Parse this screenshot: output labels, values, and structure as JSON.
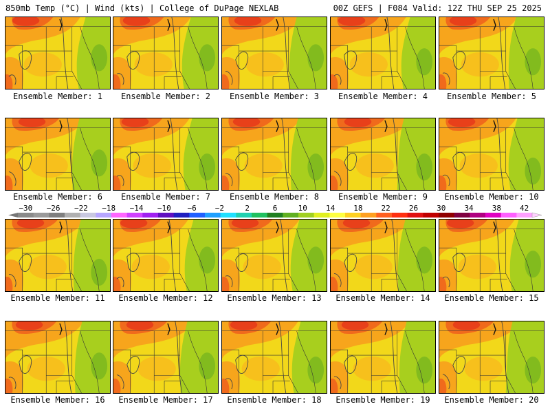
{
  "header": {
    "left": "850mb Temp (°C) | Wind (kts) | College of DuPage NEXLAB",
    "right": "00Z GEFS | F084 Valid: 12Z THU SEP 25 2025"
  },
  "members": [
    {
      "label": "Ensemble Member: 1"
    },
    {
      "label": "Ensemble Member: 2"
    },
    {
      "label": "Ensemble Member: 3"
    },
    {
      "label": "Ensemble Member: 4"
    },
    {
      "label": "Ensemble Member: 5"
    },
    {
      "label": "Ensemble Member: 6"
    },
    {
      "label": "Ensemble Member: 7"
    },
    {
      "label": "Ensemble Member: 8"
    },
    {
      "label": "Ensemble Member: 9"
    },
    {
      "label": "Ensemble Member: 10"
    },
    {
      "label": "Ensemble Member: 11"
    },
    {
      "label": "Ensemble Member: 12"
    },
    {
      "label": "Ensemble Member: 13"
    },
    {
      "label": "Ensemble Member: 14"
    },
    {
      "label": "Ensemble Member: 15"
    },
    {
      "label": "Ensemble Member: 16"
    },
    {
      "label": "Ensemble Member: 17"
    },
    {
      "label": "Ensemble Member: 18"
    },
    {
      "label": "Ensemble Member: 19"
    },
    {
      "label": "Ensemble Member: 20"
    }
  ],
  "colorbar": {
    "tick_labels": [
      "−30",
      "−26",
      "−22",
      "−18",
      "−14",
      "−10",
      "−6",
      "−2",
      "2",
      "6",
      "10",
      "14",
      "18",
      "22",
      "26",
      "30",
      "34",
      "38",
      "42"
    ],
    "colors": [
      "#8a8a8a",
      "#9a9a9a",
      "#7f7f7f",
      "#b0b0b0",
      "#c8c8e0",
      "#b6a6ff",
      "#ff66ff",
      "#d040ff",
      "#a020f0",
      "#6010c0",
      "#2020c0",
      "#2060ff",
      "#20a0ff",
      "#20e0ff",
      "#20d0b0",
      "#20c060",
      "#208020",
      "#60b020",
      "#a0d020",
      "#e0f020",
      "#ffff40",
      "#ffd020",
      "#ffa020",
      "#ff6020",
      "#ff3010",
      "#e01010",
      "#c00000",
      "#900000",
      "#800040",
      "#b00080",
      "#e000c0",
      "#ff60ff",
      "#ffa0ff"
    ]
  }
}
